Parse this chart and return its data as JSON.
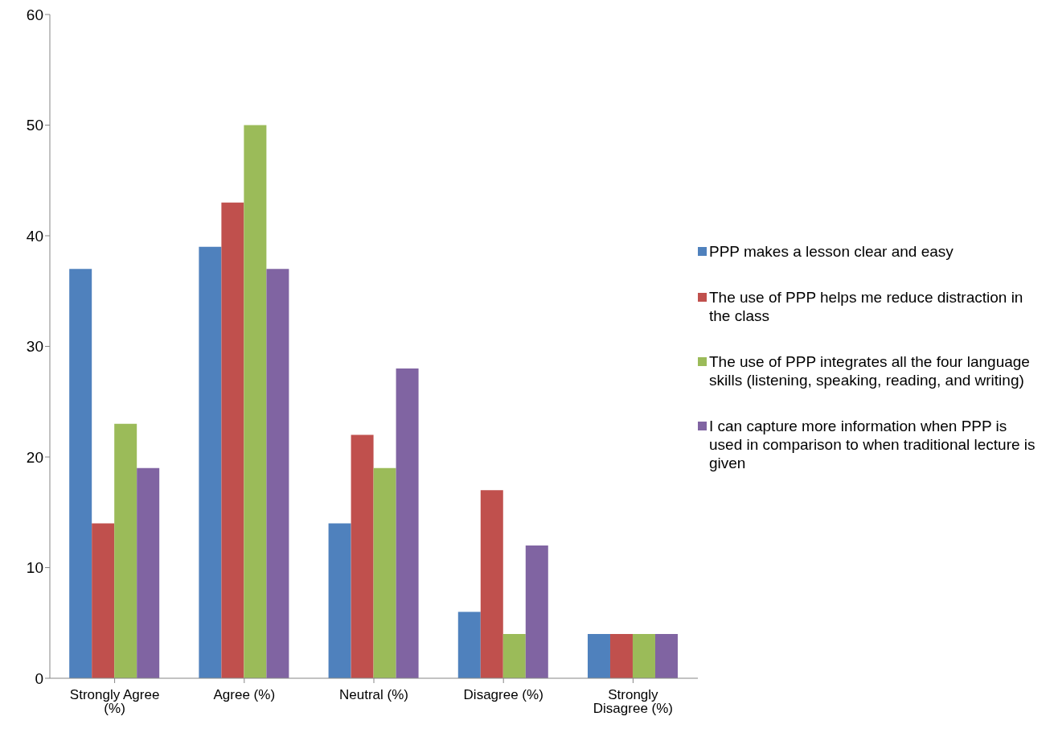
{
  "chart_data": {
    "type": "bar",
    "categories": [
      "Strongly Agree (%)",
      "Agree (%)",
      "Neutral (%)",
      "Disagree (%)",
      "Strongly Disagree (%)"
    ],
    "series": [
      {
        "name": "PPP makes a lesson clear and easy",
        "color": "#4f81bd",
        "values": [
          37,
          39,
          14,
          6,
          4
        ]
      },
      {
        "name": "The use of PPP helps me reduce distraction in the class",
        "color": "#c0504d",
        "values": [
          14,
          43,
          22,
          17,
          4
        ]
      },
      {
        "name": "The use of PPP integrates all the four language skills (listening, speaking, reading, and writing)",
        "color": "#9bbb59",
        "values": [
          23,
          50,
          19,
          4,
          4
        ]
      },
      {
        "name": "I can capture more information when PPP is used in comparison to when traditional lecture is given",
        "color": "#8064a2",
        "values": [
          19,
          37,
          28,
          12,
          4
        ]
      }
    ],
    "ylim": [
      0,
      60
    ],
    "yticks": [
      0,
      10,
      20,
      30,
      40,
      50,
      60
    ],
    "grid": false,
    "legend": "right"
  }
}
